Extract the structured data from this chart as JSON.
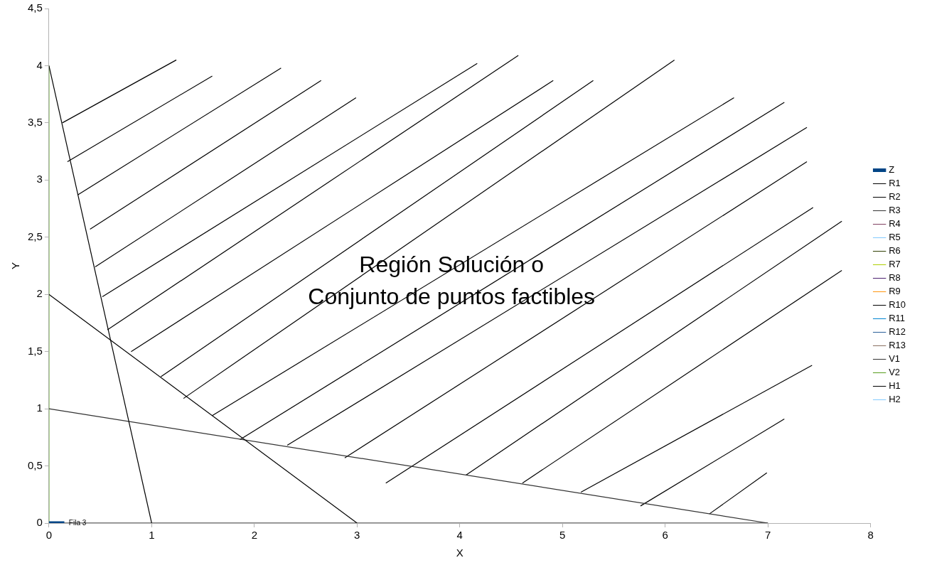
{
  "chart_data": {
    "type": "line",
    "xlabel": "X",
    "ylabel": "Y",
    "xlim": [
      0,
      8
    ],
    "xticks": [
      0,
      1,
      2,
      3,
      4,
      5,
      6,
      7,
      8
    ],
    "ylim": [
      0,
      4.5
    ],
    "yticks": [
      0,
      {
        "value": 0.5,
        "label": "0,5"
      },
      1,
      {
        "value": 1.5,
        "label": "1,5"
      },
      2,
      {
        "value": 2.5,
        "label": "2,5"
      },
      3,
      {
        "value": 3.5,
        "label": "3,5"
      },
      4,
      {
        "value": 4.5,
        "label": "4,5"
      }
    ],
    "grid": false,
    "legend": "right",
    "marker": "none",
    "line_style": "solid",
    "annotations": [
      "Región Solución o",
      "Conjunto de puntos factibles",
      "Fila 3"
    ],
    "series": [
      {
        "name": "Z",
        "color": "#004586",
        "x": [
          0,
          0.15
        ],
        "values": [
          0,
          0
        ]
      },
      {
        "name": "R1",
        "color": "#000000",
        "x": [
          0,
          1
        ],
        "values": [
          4,
          0
        ]
      },
      {
        "name": "R2",
        "color": "#000000",
        "x": [
          0,
          3
        ],
        "values": [
          2,
          0
        ]
      },
      {
        "name": "R3",
        "color": "#333333",
        "x": [
          0,
          7
        ],
        "values": [
          1,
          0
        ]
      },
      {
        "name": "R4",
        "color": "#804060"
      },
      {
        "name": "R5",
        "color": "#83caff"
      },
      {
        "name": "R6",
        "color": "#314004"
      },
      {
        "name": "R7",
        "color": "#aecf00"
      },
      {
        "name": "R8",
        "color": "#4b1f6f"
      },
      {
        "name": "R9",
        "color": "#ff950e"
      },
      {
        "name": "R10",
        "color": "#000000"
      },
      {
        "name": "R11",
        "color": "#0084d1"
      },
      {
        "name": "R12",
        "color": "#2a6099"
      },
      {
        "name": "R13",
        "color": "#8a7060"
      },
      {
        "name": "V1",
        "color": "#333333"
      },
      {
        "name": "V2",
        "color": "#579d1c",
        "x": [
          0,
          0
        ],
        "values": [
          0,
          4
        ]
      },
      {
        "name": "H1",
        "color": "#000000",
        "x": [
          0,
          7
        ],
        "values": [
          0,
          0
        ]
      },
      {
        "name": "H2",
        "color": "#83caff"
      },
      {
        "color": "#000000",
        "x": [
          0.13,
          1.24
        ],
        "values": [
          3.5,
          4.05
        ]
      },
      {
        "color": "#000000",
        "x": [
          0.18,
          1.59
        ],
        "values": [
          3.16,
          3.91
        ]
      },
      {
        "color": "#000000",
        "x": [
          0.28,
          2.26
        ],
        "values": [
          2.87,
          3.98
        ]
      },
      {
        "color": "#000000",
        "x": [
          0.4,
          2.65
        ],
        "values": [
          2.57,
          3.87
        ]
      },
      {
        "color": "#000000",
        "x": [
          0.45,
          2.99
        ],
        "values": [
          2.24,
          3.72
        ]
      },
      {
        "color": "#000000",
        "x": [
          0.52,
          4.17
        ],
        "values": [
          1.98,
          4.02
        ]
      },
      {
        "color": "#000000",
        "x": [
          0.57,
          4.57
        ],
        "values": [
          1.69,
          4.09
        ]
      },
      {
        "color": "#000000",
        "x": [
          0.8,
          4.91
        ],
        "values": [
          1.5,
          3.87
        ]
      },
      {
        "color": "#000000",
        "x": [
          1.09,
          5.3
        ],
        "values": [
          1.28,
          3.87
        ]
      },
      {
        "color": "#000000",
        "x": [
          1.31,
          6.09
        ],
        "values": [
          1.09,
          4.05
        ]
      },
      {
        "color": "#000000",
        "x": [
          1.59,
          6.67
        ],
        "values": [
          0.94,
          3.72
        ]
      },
      {
        "color": "#000000",
        "x": [
          1.86,
          7.16
        ],
        "values": [
          0.73,
          3.68
        ]
      },
      {
        "color": "#000000",
        "x": [
          2.32,
          7.38
        ],
        "values": [
          0.68,
          3.46
        ]
      },
      {
        "color": "#000000",
        "x": [
          2.88,
          7.38
        ],
        "values": [
          0.57,
          3.16
        ]
      },
      {
        "color": "#000000",
        "x": [
          3.28,
          7.44
        ],
        "values": [
          0.35,
          2.76
        ]
      },
      {
        "color": "#000000",
        "x": [
          4.06,
          7.72
        ],
        "values": [
          0.42,
          2.64
        ]
      },
      {
        "color": "#000000",
        "x": [
          4.61,
          7.72
        ],
        "values": [
          0.35,
          2.21
        ]
      },
      {
        "color": "#000000",
        "x": [
          5.18,
          7.43
        ],
        "values": [
          0.27,
          1.38
        ]
      },
      {
        "color": "#000000",
        "x": [
          5.76,
          7.16
        ],
        "values": [
          0.15,
          0.91
        ]
      },
      {
        "color": "#000000",
        "x": [
          6.43,
          6.99
        ],
        "values": [
          0.08,
          0.44
        ]
      }
    ]
  }
}
